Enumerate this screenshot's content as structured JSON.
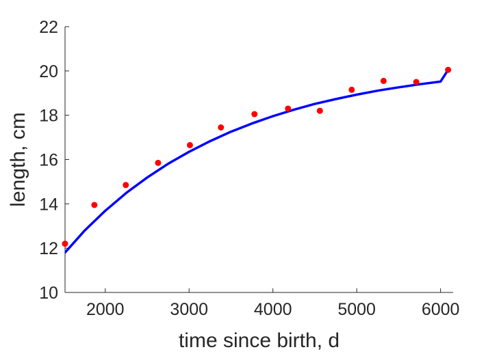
{
  "chart_data": {
    "type": "scatter",
    "xlabel": "time since birth, d",
    "ylabel": "length, cm",
    "xlim": [
      1520,
      6150
    ],
    "ylim": [
      10,
      22
    ],
    "xticks": [
      2000,
      3000,
      4000,
      5000,
      6000
    ],
    "yticks": [
      10,
      12,
      14,
      16,
      18,
      20,
      22
    ],
    "grid": false,
    "colors": {
      "points": "#ff0000",
      "fit": "#0000ff",
      "axis": "#262626"
    },
    "series": [
      {
        "kind": "points",
        "x": [
          1520,
          1870,
          2245,
          2630,
          3010,
          3380,
          3780,
          4180,
          4560,
          4940,
          5320,
          5710,
          6090
        ],
        "y": [
          12.2,
          13.95,
          14.85,
          15.85,
          16.65,
          17.45,
          18.05,
          18.3,
          18.2,
          19.15,
          19.55,
          19.5,
          20.05
        ]
      },
      {
        "kind": "fit-line",
        "x": [
          1520,
          1750,
          2000,
          2250,
          2500,
          2750,
          3000,
          3250,
          3500,
          3750,
          4000,
          4250,
          4500,
          4750,
          5000,
          5250,
          5500,
          5750,
          6000,
          6090
        ],
        "y": [
          11.8,
          12.78,
          13.69,
          14.49,
          15.19,
          15.81,
          16.35,
          16.83,
          17.26,
          17.63,
          17.96,
          18.25,
          18.51,
          18.73,
          18.93,
          19.11,
          19.26,
          19.4,
          19.52,
          20.05
        ]
      }
    ]
  }
}
